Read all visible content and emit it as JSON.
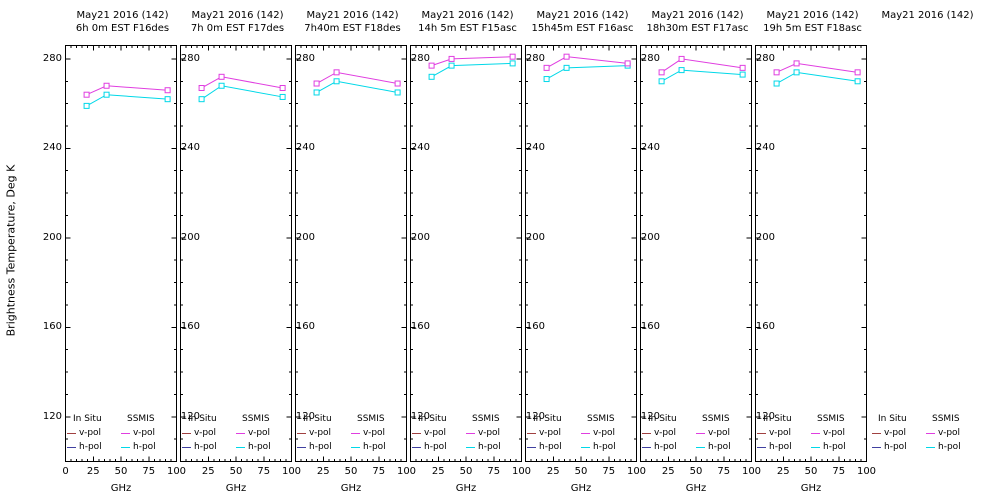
{
  "figure": {
    "ylabel": "Brightness Temperature, Deg K",
    "xlabel": "GHz",
    "background": "#ffffff",
    "frame_color": "#000000"
  },
  "legend": {
    "group1": "In Situ",
    "group2": "SSMIS",
    "position": "bottom-inside",
    "rows": [
      {
        "label": "v-pol",
        "in_situ_color": "#a04040",
        "ssmis_color": "#e03ee0"
      },
      {
        "label": "h-pol",
        "in_situ_color": "#4040a0",
        "ssmis_color": "#00d8e8"
      }
    ]
  },
  "chart_data": [
    {
      "type": "line",
      "title": "May21 2016 (142)",
      "subtitle": "6h 0m EST F16des",
      "has_axes": true,
      "x": [
        19,
        37,
        92
      ],
      "xlim": [
        0,
        100
      ],
      "ylim": [
        100,
        286
      ],
      "xticks": [
        0,
        25,
        50,
        75,
        100
      ],
      "yticks": [
        280,
        240,
        200,
        160,
        120
      ],
      "series": [
        {
          "name": "SSMIS v-pol",
          "color": "#e03ee0",
          "values": [
            264,
            268,
            266
          ]
        },
        {
          "name": "SSMIS h-pol",
          "color": "#00d8e8",
          "values": [
            259,
            264,
            262
          ]
        }
      ]
    },
    {
      "type": "line",
      "title": "May21 2016 (142)",
      "subtitle": "7h 0m EST F17des",
      "has_axes": true,
      "x": [
        19,
        37,
        92
      ],
      "xlim": [
        0,
        100
      ],
      "ylim": [
        100,
        286
      ],
      "xticks": [
        0,
        25,
        50,
        75,
        100
      ],
      "yticks": [
        280,
        240,
        200,
        160,
        120
      ],
      "series": [
        {
          "name": "SSMIS v-pol",
          "color": "#e03ee0",
          "values": [
            267,
            272,
            267
          ]
        },
        {
          "name": "SSMIS h-pol",
          "color": "#00d8e8",
          "values": [
            262,
            268,
            263
          ]
        }
      ]
    },
    {
      "type": "line",
      "title": "May21 2016 (142)",
      "subtitle": "7h40m EST F18des",
      "has_axes": true,
      "x": [
        19,
        37,
        92
      ],
      "xlim": [
        0,
        100
      ],
      "ylim": [
        100,
        286
      ],
      "xticks": [
        0,
        25,
        50,
        75,
        100
      ],
      "yticks": [
        280,
        240,
        200,
        160,
        120
      ],
      "series": [
        {
          "name": "SSMIS v-pol",
          "color": "#e03ee0",
          "values": [
            269,
            274,
            269
          ]
        },
        {
          "name": "SSMIS h-pol",
          "color": "#00d8e8",
          "values": [
            265,
            270,
            265
          ]
        }
      ]
    },
    {
      "type": "line",
      "title": "May21 2016 (142)",
      "subtitle": "14h 5m EST F15asc",
      "has_axes": true,
      "x": [
        19,
        37,
        92
      ],
      "xlim": [
        0,
        100
      ],
      "ylim": [
        100,
        286
      ],
      "xticks": [
        0,
        25,
        50,
        75,
        100
      ],
      "yticks": [
        280,
        240,
        200,
        160,
        120
      ],
      "series": [
        {
          "name": "SSMIS v-pol",
          "color": "#e03ee0",
          "values": [
            277,
            280,
            281
          ]
        },
        {
          "name": "SSMIS h-pol",
          "color": "#00d8e8",
          "values": [
            272,
            277,
            278
          ]
        }
      ]
    },
    {
      "type": "line",
      "title": "May21 2016 (142)",
      "subtitle": "15h45m EST F16asc",
      "has_axes": true,
      "x": [
        19,
        37,
        92
      ],
      "xlim": [
        0,
        100
      ],
      "ylim": [
        100,
        286
      ],
      "xticks": [
        0,
        25,
        50,
        75,
        100
      ],
      "yticks": [
        280,
        240,
        200,
        160,
        120
      ],
      "series": [
        {
          "name": "SSMIS v-pol",
          "color": "#e03ee0",
          "values": [
            276,
            281,
            278
          ]
        },
        {
          "name": "SSMIS h-pol",
          "color": "#00d8e8",
          "values": [
            271,
            276,
            277
          ]
        }
      ]
    },
    {
      "type": "line",
      "title": "May21 2016 (142)",
      "subtitle": "18h30m EST F17asc",
      "has_axes": true,
      "x": [
        19,
        37,
        92
      ],
      "xlim": [
        0,
        100
      ],
      "ylim": [
        100,
        286
      ],
      "xticks": [
        0,
        25,
        50,
        75,
        100
      ],
      "yticks": [
        280,
        240,
        200,
        160,
        120
      ],
      "series": [
        {
          "name": "SSMIS v-pol",
          "color": "#e03ee0",
          "values": [
            274,
            280,
            276
          ]
        },
        {
          "name": "SSMIS h-pol",
          "color": "#00d8e8",
          "values": [
            270,
            275,
            273
          ]
        }
      ]
    },
    {
      "type": "line",
      "title": "May21 2016 (142)",
      "subtitle": "19h 5m EST F18asc",
      "has_axes": true,
      "x": [
        19,
        37,
        92
      ],
      "xlim": [
        0,
        100
      ],
      "ylim": [
        100,
        286
      ],
      "xticks": [
        0,
        25,
        50,
        75,
        100
      ],
      "yticks": [
        280,
        240,
        200,
        160,
        120
      ],
      "series": [
        {
          "name": "SSMIS v-pol",
          "color": "#e03ee0",
          "values": [
            274,
            278,
            274
          ]
        },
        {
          "name": "SSMIS h-pol",
          "color": "#00d8e8",
          "values": [
            269,
            274,
            270
          ]
        }
      ]
    },
    {
      "type": "line",
      "title": "May21 2016 (142)",
      "subtitle": "",
      "has_axes": false,
      "series": []
    }
  ]
}
